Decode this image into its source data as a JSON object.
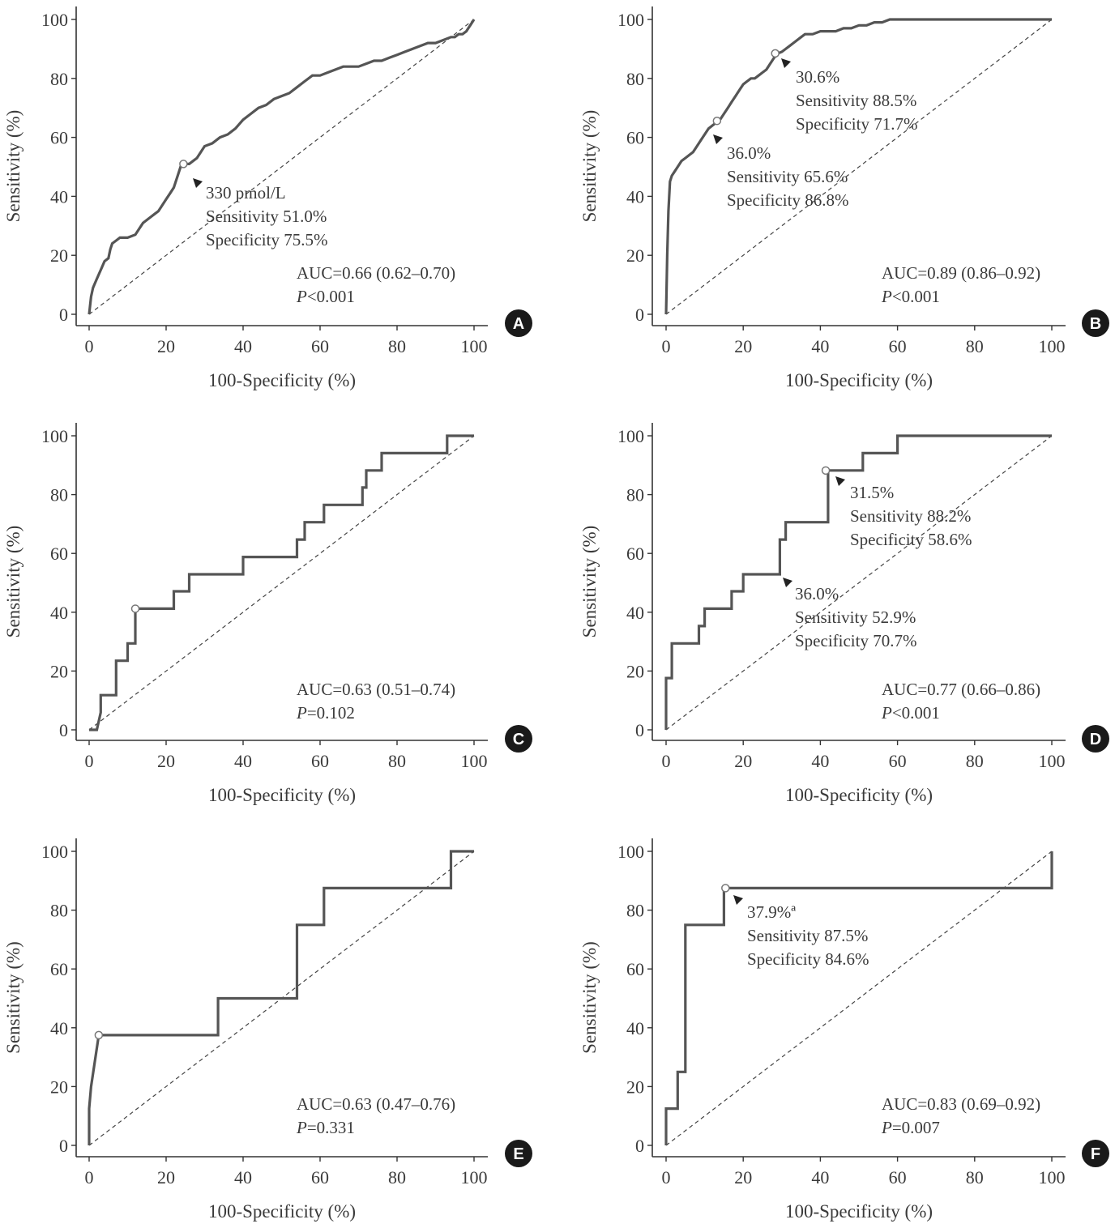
{
  "chart_data": [
    {
      "type": "line",
      "panel_label": "A",
      "xlabel": "100-Specificity (%)",
      "ylabel": "Sensitivity (%)",
      "xlim": [
        0,
        100
      ],
      "ylim": [
        0,
        100
      ],
      "xticks": [
        "0",
        "20",
        "40",
        "60",
        "80",
        "100"
      ],
      "yticks": [
        "0",
        "20",
        "40",
        "60",
        "80",
        "100"
      ],
      "grid": false,
      "reference_line": "diagonal dashed",
      "roc_curve": {
        "x": [
          0,
          0.5,
          1,
          2,
          3,
          4,
          5,
          5.5,
          6,
          7,
          8,
          10,
          12,
          13,
          14,
          15,
          16,
          17,
          18,
          19,
          20,
          21,
          22,
          23,
          24,
          25,
          26,
          27,
          28,
          29,
          30,
          32,
          34,
          36,
          38,
          40,
          42,
          44,
          46,
          48,
          50,
          52,
          54,
          56,
          58,
          60,
          62,
          64,
          66,
          68,
          70,
          72,
          74,
          76,
          78,
          80,
          82,
          84,
          86,
          88,
          90,
          92,
          94,
          95,
          96,
          97,
          98,
          98.5,
          99,
          100
        ],
        "y": [
          0,
          6,
          9,
          12,
          15,
          18,
          19,
          22,
          24,
          25,
          26,
          26,
          27,
          29,
          31,
          32,
          33,
          34,
          35,
          37,
          39,
          41,
          43,
          47,
          51,
          51,
          51,
          52,
          53,
          55,
          57,
          58,
          60,
          61,
          63,
          66,
          68,
          70,
          71,
          73,
          74,
          75,
          77,
          79,
          81,
          81,
          82,
          83,
          84,
          84,
          84,
          85,
          86,
          86,
          87,
          88,
          89,
          90,
          91,
          92,
          92,
          93,
          94,
          94,
          95,
          95,
          96,
          97,
          98,
          100
        ]
      },
      "cutoff_point": {
        "x": 24.5,
        "y": 51
      },
      "annotation_lines": [
        "330 pmol/L",
        "Sensitivity 51.0%",
        "Specificity 75.5%"
      ],
      "stats_lines": [
        {
          "text": "AUC=0.66 (0.62–0.70)"
        },
        {
          "italic": "P",
          "text": "<0.001"
        }
      ]
    },
    {
      "type": "line",
      "panel_label": "B",
      "xlabel": "100-Specificity (%)",
      "ylabel": "Sensitivity (%)",
      "xlim": [
        0,
        100
      ],
      "ylim": [
        0,
        100
      ],
      "xticks": [
        "0",
        "20",
        "40",
        "60",
        "80",
        "100"
      ],
      "yticks": [
        "0",
        "20",
        "40",
        "60",
        "80",
        "100"
      ],
      "grid": false,
      "reference_line": "diagonal dashed",
      "roc_curve": {
        "x": [
          0,
          0.3,
          0.6,
          1,
          1.5,
          2,
          3,
          4,
          5,
          6,
          7,
          8,
          9,
          10,
          11,
          12,
          13,
          14,
          15,
          16,
          17,
          18,
          19,
          20,
          21,
          22,
          23,
          24,
          25,
          26,
          27,
          28,
          29,
          30,
          31,
          32,
          33,
          34,
          35,
          36,
          38,
          40,
          42,
          44,
          46,
          48,
          50,
          52,
          54,
          56,
          58,
          60,
          70,
          80,
          90,
          100
        ],
        "y": [
          0,
          20,
          35,
          45,
          47,
          48,
          50,
          52,
          53,
          54,
          55,
          57,
          59,
          61,
          63,
          64,
          65,
          66,
          68,
          70,
          72,
          74,
          76,
          78,
          79,
          80,
          80,
          81,
          82,
          83,
          85,
          87,
          88.5,
          89,
          90,
          91,
          92,
          93,
          94,
          95,
          95,
          96,
          96,
          96,
          97,
          97,
          98,
          98,
          99,
          99,
          100,
          100,
          100,
          100,
          100,
          100
        ]
      },
      "cutoff_points": [
        {
          "x": 28.3,
          "y": 88.5
        },
        {
          "x": 13.2,
          "y": 65.6
        }
      ],
      "annotations": [
        {
          "lines": [
            "30.6%",
            "Sensitivity 88.5%",
            "Specificity 71.7%"
          ]
        },
        {
          "lines": [
            "36.0%",
            "Sensitivity 65.6%",
            "Specificity 86.8%"
          ]
        }
      ],
      "stats_lines": [
        {
          "text": "AUC=0.89 (0.86–0.92)"
        },
        {
          "italic": "P",
          "text": "<0.001"
        }
      ]
    },
    {
      "type": "line",
      "panel_label": "C",
      "xlabel": "100-Specificity (%)",
      "ylabel": "Sensitivity (%)",
      "xlim": [
        0,
        100
      ],
      "ylim": [
        0,
        100
      ],
      "xticks": [
        "0",
        "20",
        "40",
        "60",
        "80",
        "100"
      ],
      "yticks": [
        "0",
        "20",
        "40",
        "60",
        "80",
        "100"
      ],
      "grid": false,
      "reference_line": "diagonal dashed",
      "roc_curve": {
        "x": [
          0,
          2,
          3,
          3,
          7,
          7,
          10,
          10,
          12,
          12,
          22,
          22,
          26,
          26,
          40,
          40,
          54,
          54,
          56,
          56,
          61,
          61,
          71,
          71,
          72,
          72,
          76,
          76,
          93,
          93,
          100
        ],
        "y": [
          0,
          0,
          5.9,
          11.8,
          11.8,
          23.5,
          23.5,
          29.4,
          29.4,
          41.2,
          41.2,
          47.1,
          47.1,
          52.9,
          52.9,
          58.8,
          58.8,
          64.7,
          64.7,
          70.6,
          70.6,
          76.5,
          76.5,
          82.4,
          82.4,
          88.2,
          88.2,
          94.1,
          94.1,
          100,
          100
        ]
      },
      "cutoff_point": {
        "x": 12,
        "y": 41.2
      },
      "stats_lines": [
        {
          "text": "AUC=0.63 (0.51–0.74)"
        },
        {
          "italic": "P",
          "text": "=0.102"
        }
      ]
    },
    {
      "type": "line",
      "panel_label": "D",
      "xlabel": "100-Specificity (%)",
      "ylabel": "Sensitivity (%)",
      "xlim": [
        0,
        100
      ],
      "ylim": [
        0,
        100
      ],
      "xticks": [
        "0",
        "20",
        "40",
        "60",
        "80",
        "100"
      ],
      "yticks": [
        "0",
        "20",
        "40",
        "60",
        "80",
        "100"
      ],
      "grid": false,
      "reference_line": "diagonal dashed",
      "roc_curve": {
        "x": [
          0,
          0,
          1.5,
          1.5,
          8.5,
          8.5,
          10,
          10,
          17,
          17,
          20,
          20,
          29.5,
          29.5,
          31,
          31,
          42,
          42,
          51,
          51,
          60,
          60,
          100
        ],
        "y": [
          0,
          17.6,
          17.6,
          29.4,
          29.4,
          35.3,
          35.3,
          41.2,
          41.2,
          47.1,
          47.1,
          52.9,
          52.9,
          64.7,
          64.7,
          70.6,
          70.6,
          88.2,
          88.2,
          94.1,
          94.1,
          100,
          100
        ]
      },
      "cutoff_points": [
        {
          "x": 41.4,
          "y": 88.2
        }
      ],
      "annotations": [
        {
          "lines": [
            "31.5%",
            "Sensitivity 88.2%",
            "Specificity 58.6%"
          ]
        },
        {
          "lines": [
            "36.0%",
            "Sensitivity 52.9%",
            "Specificity 70.7%"
          ]
        }
      ],
      "stats_lines": [
        {
          "text": "AUC=0.77 (0.66–0.86)"
        },
        {
          "italic": "P",
          "text": "<0.001"
        }
      ]
    },
    {
      "type": "line",
      "panel_label": "E",
      "xlabel": "100-Specificity (%)",
      "ylabel": "Sensitivity (%)",
      "xlim": [
        0,
        100
      ],
      "ylim": [
        0,
        100
      ],
      "xticks": [
        "0",
        "20",
        "40",
        "60",
        "80",
        "100"
      ],
      "yticks": [
        "0",
        "20",
        "40",
        "60",
        "80",
        "100"
      ],
      "grid": false,
      "reference_line": "diagonal dashed",
      "roc_curve": {
        "x": [
          0,
          0,
          0.5,
          2.5,
          33.5,
          33.5,
          54,
          54,
          61,
          61,
          94,
          94,
          100
        ],
        "y": [
          0,
          12.5,
          20,
          37.5,
          37.5,
          50,
          50,
          75,
          75,
          87.5,
          87.5,
          100,
          100
        ]
      },
      "cutoff_point": {
        "x": 2.5,
        "y": 37.5
      },
      "stats_lines": [
        {
          "text": "AUC=0.63 (0.47–0.76)"
        },
        {
          "italic": "P",
          "text": "=0.331"
        }
      ]
    },
    {
      "type": "line",
      "panel_label": "F",
      "xlabel": "100-Specificity (%)",
      "ylabel": "Sensitivity (%)",
      "xlim": [
        0,
        100
      ],
      "ylim": [
        0,
        100
      ],
      "xticks": [
        "0",
        "20",
        "40",
        "60",
        "80",
        "100"
      ],
      "yticks": [
        "0",
        "20",
        "40",
        "60",
        "80",
        "100"
      ],
      "grid": false,
      "reference_line": "diagonal dashed",
      "roc_curve": {
        "x": [
          0,
          0,
          3,
          3,
          5,
          5,
          15,
          15,
          100,
          100
        ],
        "y": [
          0,
          12.5,
          12.5,
          25,
          25,
          75,
          75,
          87.5,
          87.5,
          100
        ]
      },
      "cutoff_point": {
        "x": 15.4,
        "y": 87.5
      },
      "annotation_lines": [
        "37.9%ª",
        "Sensitivity 87.5%",
        "Specificity 84.6%"
      ],
      "stats_lines": [
        {
          "text": "AUC=0.83 (0.69–0.92)"
        },
        {
          "italic": "P",
          "text": "=0.007"
        }
      ]
    }
  ]
}
